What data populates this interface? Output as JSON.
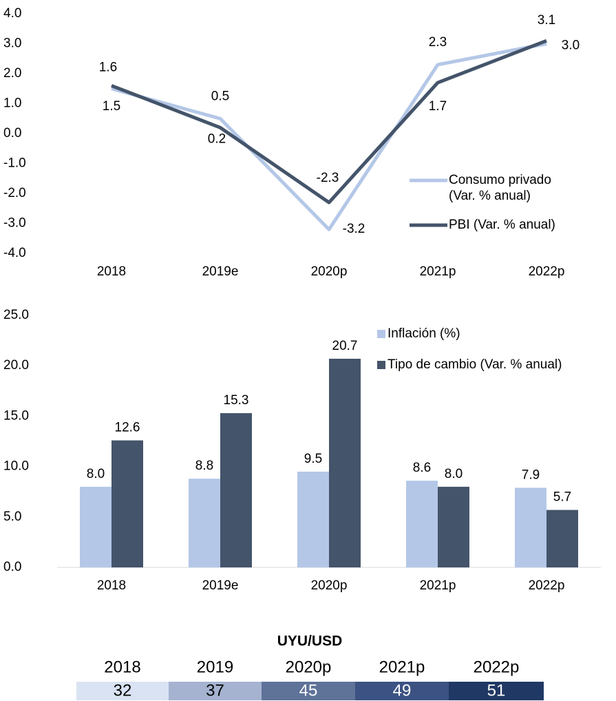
{
  "chart_data": [
    {
      "type": "line",
      "categories": [
        "2018",
        "2019e",
        "2020p",
        "2021p",
        "2022p"
      ],
      "series": [
        {
          "name": "Consumo privado (Var. % anual)",
          "color": "#b4c7e7",
          "values": [
            1.5,
            0.5,
            -3.2,
            2.3,
            3.0
          ],
          "value_labels": [
            "1.5",
            "0.5",
            "-3.2",
            "2.3",
            "3.0"
          ]
        },
        {
          "name": "PBI (Var. % anual)",
          "color": "#44546a",
          "values": [
            1.6,
            0.2,
            -2.3,
            1.7,
            3.1
          ],
          "value_labels": [
            "1.6",
            "0.2",
            "-2.3",
            "1.7",
            "3.1"
          ]
        }
      ],
      "ylim": [
        -4,
        4
      ],
      "yticks": [
        {
          "value": -4,
          "label": "-4.0"
        },
        {
          "value": -3,
          "label": "-3.0"
        },
        {
          "value": -2,
          "label": "-2.0"
        },
        {
          "value": -1,
          "label": "-1.0"
        },
        {
          "value": 0,
          "label": "0.0"
        },
        {
          "value": 1,
          "label": "1.0"
        },
        {
          "value": 2,
          "label": "2.0"
        },
        {
          "value": 3,
          "label": "3.0"
        },
        {
          "value": 4,
          "label": "4.0"
        }
      ]
    },
    {
      "type": "bar",
      "categories": [
        "2018",
        "2019e",
        "2020p",
        "2021p",
        "2022p"
      ],
      "series": [
        {
          "name": "Inflación (%)",
          "color": "#b4c7e7",
          "values": [
            8.0,
            8.8,
            9.5,
            8.6,
            7.9
          ],
          "value_labels": [
            "8.0",
            "8.8",
            "9.5",
            "8.6",
            "7.9"
          ]
        },
        {
          "name": "Tipo de cambio  (Var. % anual)",
          "color": "#44546a",
          "values": [
            12.6,
            15.3,
            20.7,
            8.0,
            5.7
          ],
          "value_labels": [
            "12.6",
            "15.3",
            "20.7",
            "8.0",
            "5.7"
          ]
        }
      ],
      "ylim": [
        0,
        25
      ],
      "yticks": [
        {
          "value": 0,
          "label": "0.0"
        },
        {
          "value": 5,
          "label": "5.0"
        },
        {
          "value": 10,
          "label": "10.0"
        },
        {
          "value": 15,
          "label": "15.0"
        },
        {
          "value": 20,
          "label": "20.0"
        },
        {
          "value": 25,
          "label": "25.0"
        }
      ]
    }
  ],
  "table": {
    "title": "UYU/USD",
    "header": [
      "2018",
      "2019",
      "2020p",
      "2021p",
      "2022p"
    ],
    "rows": [
      [
        32,
        37,
        45,
        49,
        51
      ]
    ]
  }
}
